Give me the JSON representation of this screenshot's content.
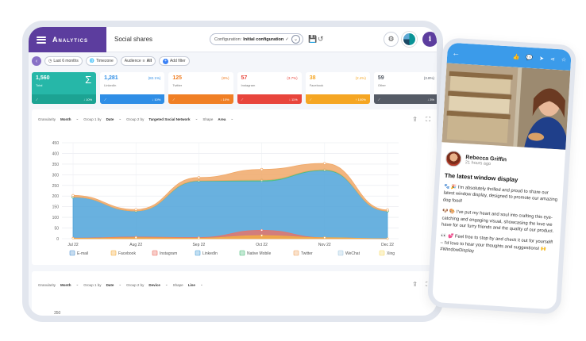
{
  "app": {
    "brand": "Analytics",
    "page_title": "Social shares",
    "config_label": "Configuration:",
    "config_value": "Initial configuration",
    "config_check": "✓",
    "save_icon": "floppy-icon",
    "undo_icon": "undo-icon",
    "info_label": "i"
  },
  "filters": {
    "date_range": "Last 6 months",
    "timezone": "Timezone",
    "audience_label": "Audience",
    "audience_value": "All",
    "add_filter": "Add filter"
  },
  "cards": [
    {
      "value": "1,560",
      "label": "Total",
      "pct": "",
      "trend": "↓ 10%",
      "color": "#26b7a8"
    },
    {
      "value": "1,281",
      "label": "LinkedIn",
      "pct": "(82.1%)",
      "trend": "↓ 10%",
      "color": "#2f8ee6"
    },
    {
      "value": "125",
      "label": "Twitter",
      "pct": "(8%)",
      "trend": "↓ 10%",
      "color": "#f07f25"
    },
    {
      "value": "57",
      "label": "Instagram",
      "pct": "(3.7%)",
      "trend": "↓ 11%",
      "color": "#e8453c"
    },
    {
      "value": "38",
      "label": "Facebook",
      "pct": "(2.4%)",
      "trend": "↑ 100%",
      "color": "#f5a623"
    },
    {
      "value": "59",
      "label": "Other",
      "pct": "(3.8%)",
      "trend": "↓ 3%",
      "color": "#555b66"
    }
  ],
  "controls": {
    "granularity_label": "Granularity",
    "granularity_value": "Month",
    "group1_label": "Group 1 by",
    "group1_value": "Date",
    "group2_label": "Group 2 by",
    "group2_value": "Targeted Social Network",
    "shape_label": "Shape",
    "shape_value": "Area"
  },
  "controls2": {
    "granularity_label": "Granularity",
    "granularity_value": "Month",
    "group1_label": "Group 1 by",
    "group1_value": "Date",
    "group2_label": "Group 2 by",
    "group2_value": "Device",
    "shape_label": "Shape",
    "shape_value": "Line",
    "y_top": "350"
  },
  "chart_data": {
    "type": "area",
    "stacked": true,
    "x": [
      "Jul 22",
      "Aug 22",
      "Sep 22",
      "Oct 22",
      "Nov 22",
      "Dec 22"
    ],
    "y_ticks": [
      0,
      50,
      100,
      150,
      200,
      250,
      300,
      350,
      400,
      450
    ],
    "ylim": [
      0,
      450
    ],
    "grid": true,
    "legend_position": "bottom",
    "series": [
      {
        "name": "E-mail",
        "color": "#5b9bd5",
        "values": [
          0,
          0,
          0,
          0,
          0,
          0
        ]
      },
      {
        "name": "Facebook",
        "color": "#f5b041",
        "values": [
          2,
          5,
          3,
          15,
          5,
          0
        ]
      },
      {
        "name": "Instagram",
        "color": "#ec7063",
        "values": [
          3,
          8,
          6,
          40,
          5,
          0
        ]
      },
      {
        "name": "LinkedIn",
        "color": "#4fa3d9",
        "values": [
          195,
          130,
          270,
          270,
          320,
          130
        ]
      },
      {
        "name": "Native Mobile",
        "color": "#52be80",
        "values": [
          0,
          0,
          2,
          5,
          3,
          0
        ]
      },
      {
        "name": "Twitter",
        "color": "#f0a868",
        "values": [
          8,
          7,
          15,
          50,
          30,
          5
        ]
      },
      {
        "name": "WeChat",
        "color": "#a9cce3",
        "values": [
          0,
          0,
          0,
          0,
          0,
          0
        ]
      },
      {
        "name": "Xing",
        "color": "#f7dc6f",
        "values": [
          0,
          0,
          0,
          0,
          0,
          0
        ]
      }
    ]
  },
  "phone": {
    "author": "Rebecca Griffin",
    "time": "21 hours ago",
    "title": "The latest window display",
    "para1": "🐾 🎉 I'm absolutely thrilled and proud to share our latest window display, designed to promote our amazing dog food!",
    "para2": "🐶 🎨 I've put my heart and soul into crafting this eye-catching and engaging visual, showcasing the love we have for our furry friends and the quality of our product.",
    "para3": "👀 💕 Feel free to stop by and check it out for yourself! – I'd love to hear your thoughts and suggestions! 🙌 #WindowDisplay"
  }
}
